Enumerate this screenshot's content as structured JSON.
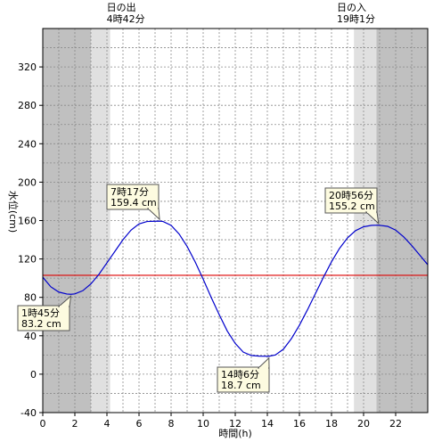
{
  "chart_data": {
    "type": "line",
    "title": "",
    "xlabel": "時間(h)",
    "ylabel": "水位(cm)",
    "xlim": [
      0,
      24
    ],
    "ylim": [
      -40,
      360
    ],
    "x_ticks": [
      "0",
      "2",
      "4",
      "6",
      "8",
      "10",
      "12",
      "14",
      "16",
      "18",
      "20",
      "22"
    ],
    "y_ticks": [
      "-40",
      "0",
      "40",
      "80",
      "120",
      "160",
      "200",
      "240",
      "280",
      "320"
    ],
    "grid": true,
    "colors": {
      "line": "#0000cc",
      "reference_line": "#dd0000",
      "night": "#c0c0c0",
      "twilight": "#e0e0e0",
      "day": "#ffffff"
    },
    "reference_line_value": 103,
    "shading": {
      "night": [
        [
          0,
          3
        ],
        [
          20.8,
          24
        ]
      ],
      "twilight": [
        [
          3,
          4.2
        ],
        [
          19.4,
          20.8
        ]
      ]
    },
    "sunrise": {
      "title": "日の出",
      "time": "4時42分",
      "x": 4.7
    },
    "sunset": {
      "title": "日の入",
      "time": "19時1分",
      "x": 19.0
    },
    "series": [
      {
        "x": [
          0,
          0.5,
          1,
          1.5,
          1.75,
          2,
          2.5,
          3,
          3.5,
          4,
          4.5,
          5,
          5.5,
          6,
          6.5,
          7,
          7.28,
          7.5,
          8,
          8.5,
          9,
          9.5,
          10,
          10.5,
          11,
          11.5,
          12,
          12.5,
          13,
          13.5,
          14,
          14.1,
          14.5,
          15,
          15.5,
          16,
          16.5,
          17,
          17.5,
          18,
          18.5,
          19,
          19.5,
          20,
          20.5,
          20.93,
          21.5,
          22,
          22.5,
          23,
          23.5,
          24
        ],
        "y": [
          101,
          91,
          85.5,
          83.5,
          83.2,
          83.6,
          87,
          94,
          104,
          116,
          128,
          140,
          150,
          156.5,
          159,
          159.3,
          159.4,
          159,
          155,
          146,
          133,
          117,
          99,
          80,
          62,
          45,
          32,
          23,
          19.5,
          18.8,
          18.7,
          18.7,
          20,
          26,
          37,
          51,
          67,
          84,
          101,
          117,
          131,
          142,
          149.5,
          153.5,
          155,
          155.2,
          154,
          150,
          143,
          134,
          124,
          114
        ]
      }
    ],
    "annotations": [
      {
        "time": "1時45分",
        "value": "83.2 cm",
        "x": 1.75,
        "y": 83.2
      },
      {
        "time": "7時17分",
        "value": "159.4 cm",
        "x": 7.28,
        "y": 159.4
      },
      {
        "time": "14時6分",
        "value": "18.7 cm",
        "x": 14.1,
        "y": 18.7
      },
      {
        "time": "20時56分",
        "value": "155.2 cm",
        "x": 20.93,
        "y": 155.2
      }
    ]
  }
}
